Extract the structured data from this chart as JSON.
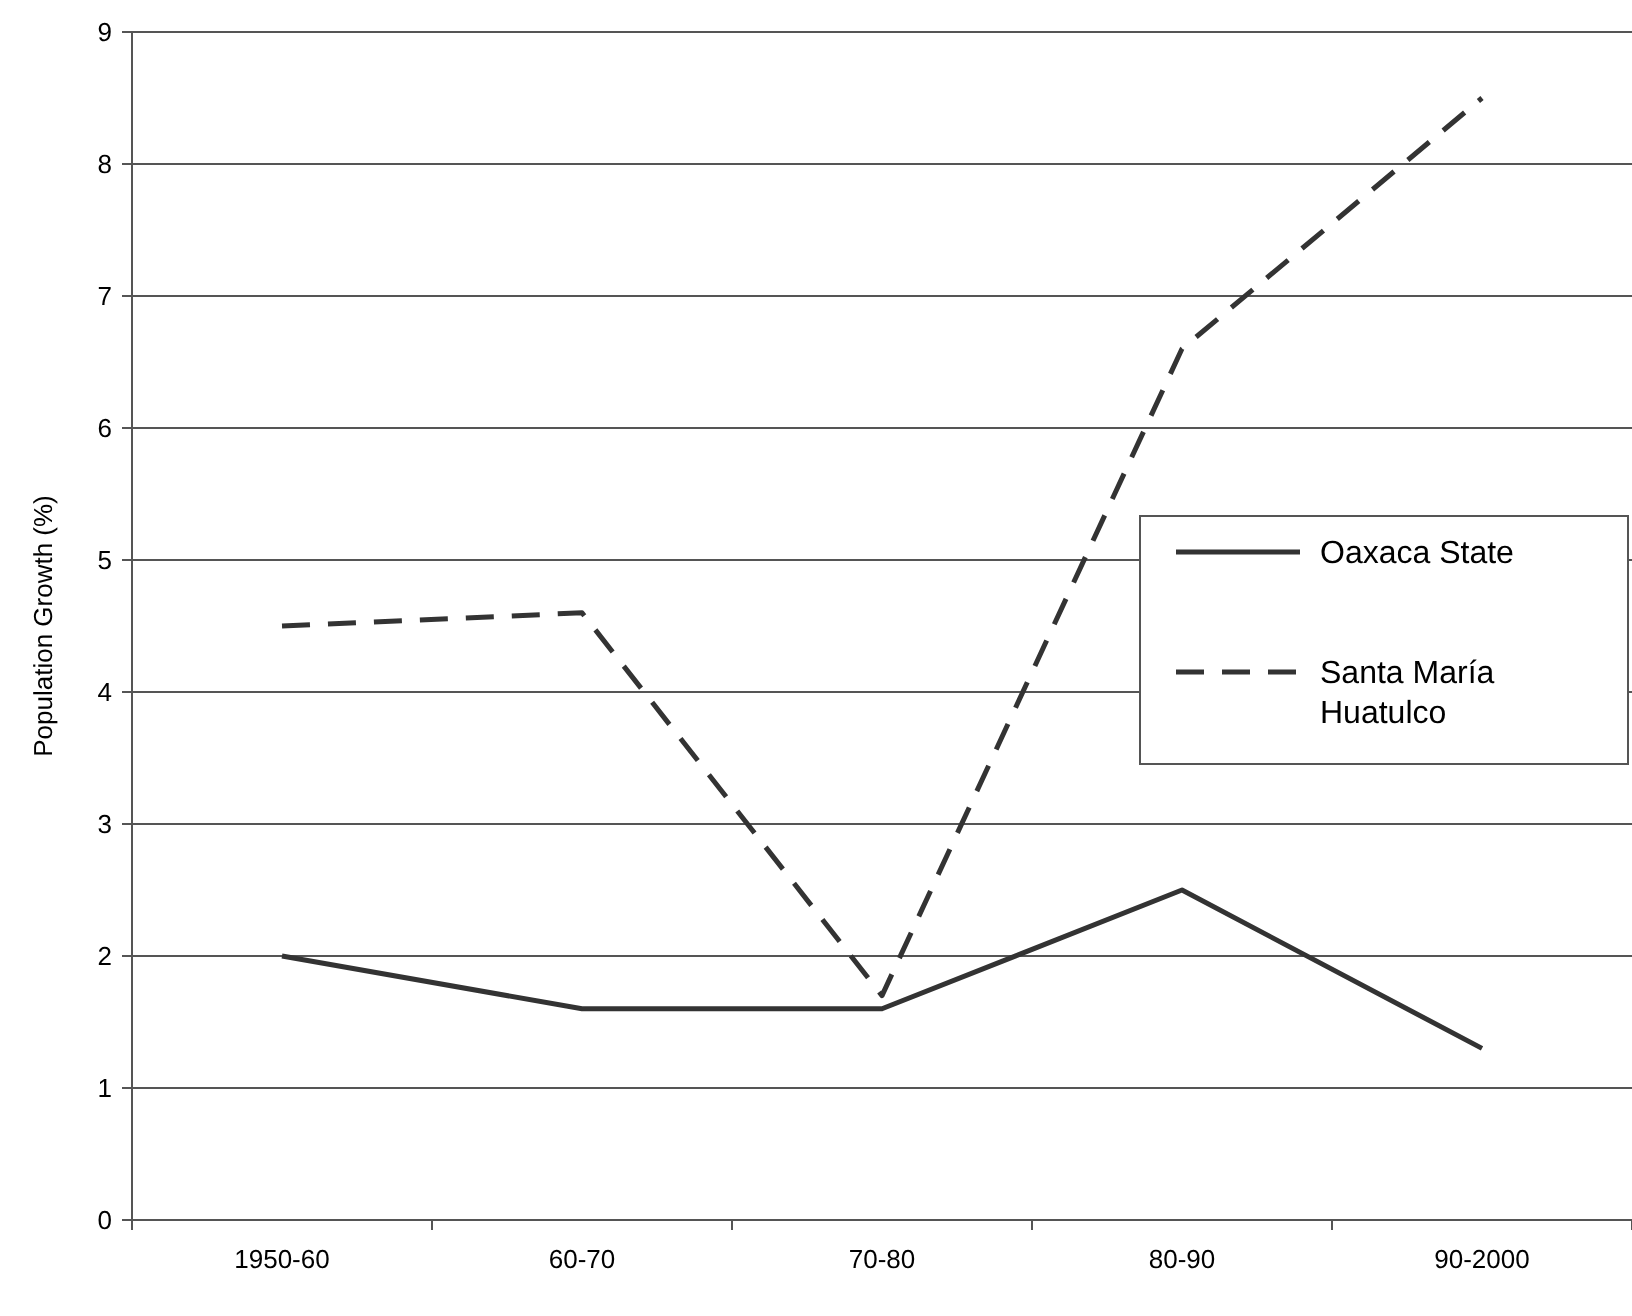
{
  "chart_data": {
    "type": "line",
    "ylabel": "Population Growth (%)",
    "categories": [
      "1950-60",
      "60-70",
      "70-80",
      "80-90",
      "90-2000"
    ],
    "series": [
      {
        "name": "Oaxaca State",
        "color": "#333333",
        "line_style": "solid",
        "values": [
          2.0,
          1.6,
          1.6,
          2.5,
          1.3
        ]
      },
      {
        "name": "Santa María Huatulco",
        "color": "#333333",
        "line_style": "dashed",
        "values": [
          4.5,
          4.6,
          1.7,
          6.6,
          8.5
        ]
      }
    ],
    "ylim": [
      0,
      9
    ],
    "yticks": [
      0,
      1,
      2,
      3,
      4,
      5,
      6,
      7,
      8,
      9
    ],
    "grid": "y",
    "legend": "right",
    "marker": "none"
  }
}
